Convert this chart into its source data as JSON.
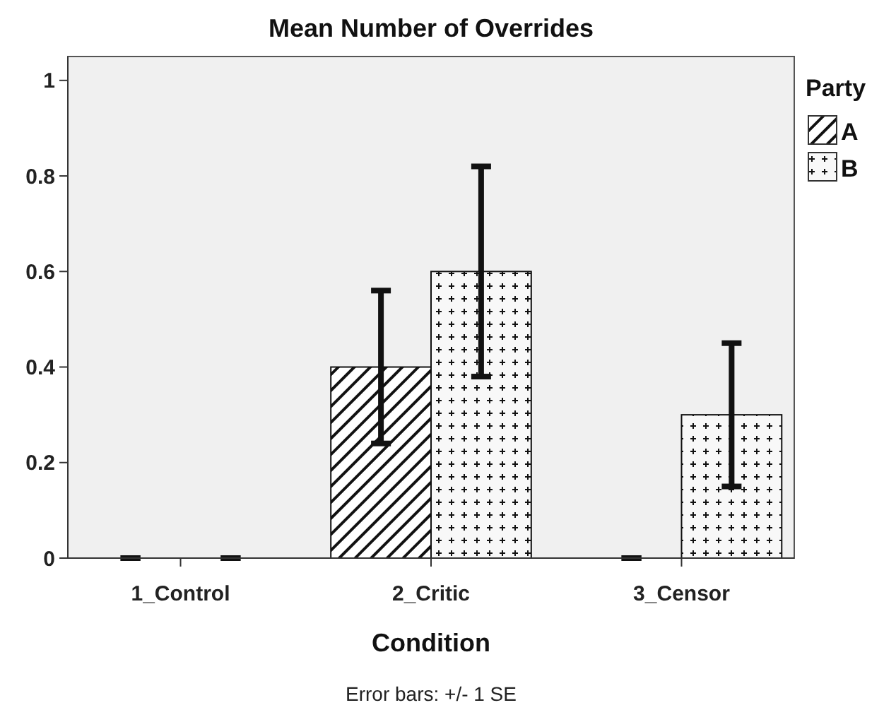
{
  "chart_data": {
    "type": "bar",
    "title": "Mean Number of Overrides",
    "xlabel": "Condition",
    "legend_title": "Party",
    "categories": [
      "1_Control",
      "2_Critic",
      "3_Censor"
    ],
    "series": [
      {
        "name": "A",
        "color": "#111111",
        "values": [
          0,
          0.4,
          0
        ],
        "errors": [
          0,
          0.16,
          0
        ]
      },
      {
        "name": "B",
        "color": "#111111",
        "values": [
          0,
          0.6,
          0.3
        ],
        "errors": [
          0,
          0.22,
          0.15
        ]
      }
    ],
    "ylim": [
      0,
      1.05
    ],
    "yticks": [
      0,
      0.2,
      0.4,
      0.6,
      0.8,
      1
    ],
    "grid": false,
    "legend": "top right",
    "annotations": [
      "Error bars: +/- 1 SE"
    ]
  }
}
